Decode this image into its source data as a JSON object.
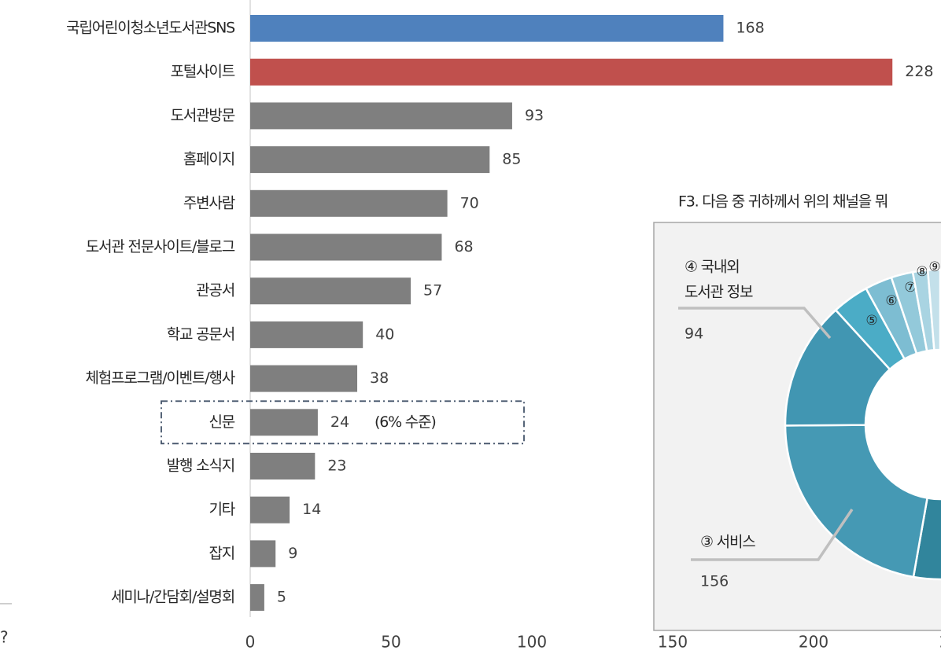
{
  "left_fragment": "?",
  "chart_data": [
    {
      "type": "bar",
      "orientation": "horizontal",
      "categories": [
        "국립어린이청소년도서관SNS",
        "포털사이트",
        "도서관방문",
        "홈페이지",
        "주변사람",
        "도서관 전문사이트/블로그",
        "관공서",
        "학교 공문서",
        "체험프로그램/이벤트/행사",
        "신문",
        "발행 소식지",
        "기타",
        "잡지",
        "세미나/간담회/설명회"
      ],
      "series": [
        {
          "values": [
            168,
            228,
            93,
            85,
            70,
            68,
            57,
            40,
            38,
            24,
            23,
            14,
            9,
            5
          ],
          "colors": [
            "#4f81bd",
            "#c0504d",
            "#7f7f7f",
            "#7f7f7f",
            "#7f7f7f",
            "#7f7f7f",
            "#7f7f7f",
            "#7f7f7f",
            "#7f7f7f",
            "#7f7f7f",
            "#7f7f7f",
            "#7f7f7f",
            "#7f7f7f",
            "#7f7f7f"
          ]
        }
      ],
      "xlim": [
        0,
        250
      ],
      "xticks": [
        0,
        50,
        100,
        150,
        200,
        250
      ],
      "annotations": [
        {
          "category_index": 9,
          "text": "(6% 수준)"
        }
      ]
    },
    {
      "type": "donut",
      "title": "F3. 다음 중 귀하께서 위의 채널을 뭐",
      "segments": [
        {
          "label": null,
          "value": 372,
          "color": "#31859c"
        },
        {
          "label": [
            "③ 서비스"
          ],
          "value": 156,
          "color": "#4599b4",
          "show_value": true
        },
        {
          "label": [
            "④ 국내외",
            "도서관 정보"
          ],
          "value": 94,
          "color": "#4196b2",
          "show_value": true
        },
        {
          "label": [
            "⑤"
          ],
          "value": 27,
          "color": "#4bacc6"
        },
        {
          "label": [
            "⑥"
          ],
          "value": 20,
          "color": "#7dbdd2"
        },
        {
          "label": [
            "⑦"
          ],
          "value": 16,
          "color": "#93c9da"
        },
        {
          "label": [
            "⑧"
          ],
          "value": 11,
          "color": "#a9d4e2"
        },
        {
          "label": [
            "⑨"
          ],
          "value": 9,
          "color": "#c3e0ea"
        }
      ]
    }
  ]
}
